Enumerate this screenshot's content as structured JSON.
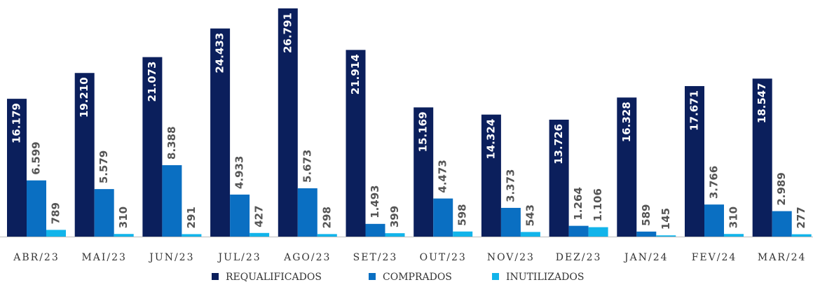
{
  "chart_data": {
    "type": "bar",
    "categories": [
      "ABR/23",
      "MAI/23",
      "JUN/23",
      "JUL/23",
      "AGO/23",
      "SET/23",
      "OUT/23",
      "NOV/23",
      "DEZ/23",
      "JAN/24",
      "FEV/24",
      "MAR/24"
    ],
    "series": [
      {
        "name": "REQUALIFICADOS",
        "color": "#0b1f5c",
        "values": [
          16179,
          19210,
          21073,
          24433,
          26791,
          21914,
          15169,
          14324,
          13726,
          16328,
          17671,
          18547
        ],
        "value_labels": [
          "16.179",
          "19.210",
          "21.073",
          "24.433",
          "26.791",
          "21.914",
          "15.169",
          "14.324",
          "13.726",
          "16.328",
          "17.671",
          "18.547"
        ]
      },
      {
        "name": "COMPRADOS",
        "color": "#0a6fc2",
        "values": [
          6599,
          5579,
          8388,
          4933,
          5673,
          1493,
          4473,
          3373,
          1264,
          589,
          3766,
          2989
        ],
        "value_labels": [
          "6.599",
          "5.579",
          "8.388",
          "4.933",
          "5.673",
          "1.493",
          "4.473",
          "3.373",
          "1.264",
          "589",
          "3.766",
          "2.989"
        ]
      },
      {
        "name": "INUTILIZADOS",
        "color": "#12b4ea",
        "values": [
          789,
          310,
          291,
          427,
          298,
          399,
          598,
          543,
          1106,
          145,
          310,
          277
        ],
        "value_labels": [
          "789",
          "310",
          "291",
          "427",
          "298",
          "399",
          "598",
          "543",
          "1.106",
          "145",
          "310",
          "277"
        ]
      }
    ]
  }
}
